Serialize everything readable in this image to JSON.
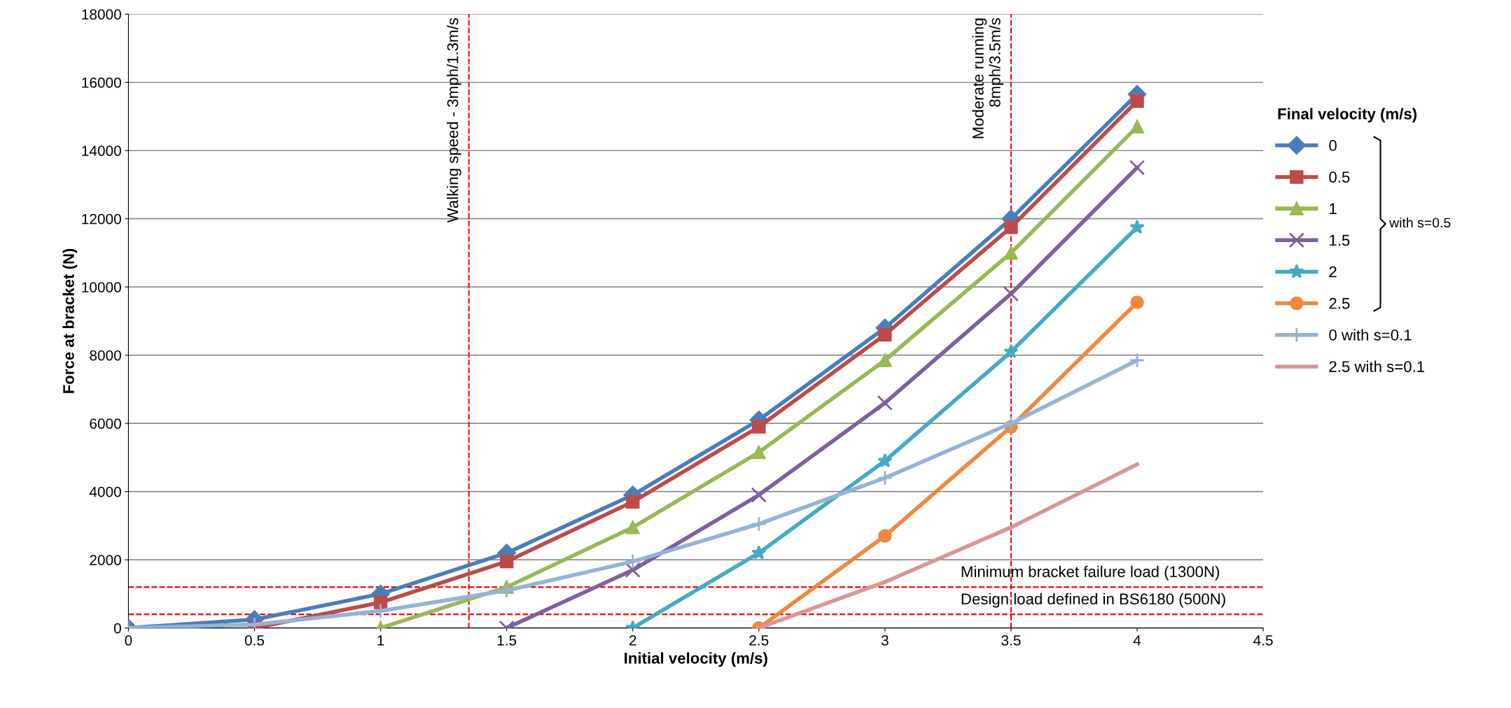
{
  "chart_data": {
    "type": "line",
    "xlabel": "Initial velocity (m/s)",
    "ylabel": "Force at bracket (N)",
    "legend_title": "Final velocity (m/s)",
    "xlim": [
      0,
      4.5
    ],
    "xticks": [
      0,
      0.5,
      1,
      1.5,
      2,
      2.5,
      3,
      3.5,
      4,
      4.5
    ],
    "ylim": [
      0,
      18000
    ],
    "yticks": [
      0,
      2000,
      4000,
      6000,
      8000,
      10000,
      12000,
      14000,
      16000,
      18000
    ],
    "grid": "y",
    "legend": "right",
    "line_style": "solid",
    "series": [
      {
        "name": "0",
        "color": "#4a7ebb",
        "marker": "diamond",
        "x": [
          0,
          0.5,
          1,
          1.5,
          2,
          2.5,
          3,
          3.5,
          4
        ],
        "values": [
          0,
          250,
          1000,
          2200,
          3900,
          6100,
          8800,
          12000,
          15650
        ]
      },
      {
        "name": "0.5",
        "color": "#be4b48",
        "marker": "square",
        "x": [
          0.5,
          1,
          1.5,
          2,
          2.5,
          3,
          3.5,
          4
        ],
        "values": [
          0,
          750,
          1950,
          3700,
          5900,
          8600,
          11750,
          15450
        ]
      },
      {
        "name": "1",
        "color": "#98b954",
        "marker": "triangle",
        "x": [
          1,
          1.5,
          2,
          2.5,
          3,
          3.5,
          4
        ],
        "values": [
          0,
          1200,
          2950,
          5150,
          7850,
          11000,
          14700
        ]
      },
      {
        "name": "1.5",
        "color": "#7d60a0",
        "marker": "cross",
        "x": [
          1.5,
          2,
          2.5,
          3,
          3.5,
          4
        ],
        "values": [
          0,
          1700,
          3900,
          6600,
          9800,
          13500
        ]
      },
      {
        "name": "2",
        "color": "#46aac5",
        "marker": "star",
        "x": [
          2,
          2.5,
          3,
          3.5,
          4
        ],
        "values": [
          0,
          2200,
          4900,
          8100,
          11750
        ]
      },
      {
        "name": "2.5",
        "color": "#f0883e",
        "marker": "circle",
        "x": [
          2.5,
          3,
          3.5,
          4
        ],
        "values": [
          0,
          2700,
          5900,
          9550
        ]
      },
      {
        "name": "0 with s=0.1",
        "color": "#95b3d7",
        "marker": "plus",
        "x": [
          0,
          0.5,
          1,
          1.5,
          2,
          2.5,
          3,
          3.5,
          4
        ],
        "values": [
          0,
          100,
          500,
          1100,
          1950,
          3050,
          4400,
          6000,
          7850
        ]
      },
      {
        "name": "2.5 with s=0.1",
        "color": "#d99694",
        "marker": "none",
        "x": [
          2.5,
          3,
          3.5,
          4
        ],
        "values": [
          0,
          1350,
          2950,
          4800
        ]
      }
    ],
    "ref_lines": [
      {
        "axis": "x",
        "value": 1.35,
        "label": "Walking speed - 3mph/1.3m/s",
        "color": "#ff0000",
        "line_style": "dashed"
      },
      {
        "axis": "x",
        "value": 3.5,
        "label": "Moderate running\n8mph/3.5m/s",
        "color": "#ff0000",
        "line_style": "dashed"
      },
      {
        "axis": "y",
        "value": 1200,
        "label": "Minimum bracket failure load (1300N)",
        "color": "#ff0000",
        "line_style": "dashed"
      },
      {
        "axis": "y",
        "value": 400,
        "label": "Design load defined in BS6180 (500N)",
        "color": "#ff0000",
        "line_style": "dashed"
      }
    ],
    "annotations": [
      "with s=0.5"
    ]
  }
}
